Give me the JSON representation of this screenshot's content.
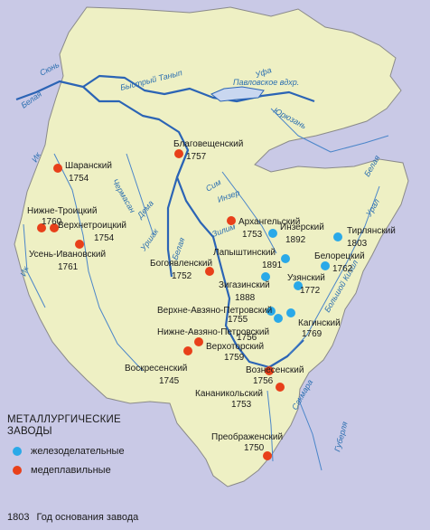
{
  "colors": {
    "background": "#c9c9e6",
    "land": "#eef0c4",
    "border": "#8a8a8a",
    "river": "#2b64b5",
    "river_thin": "#4a85c9",
    "iron_works": "#2aa9e8",
    "copper_works": "#e8401a"
  },
  "legend": {
    "title_line1": "МЕТАЛЛУРГИЧЕСКИЕ",
    "title_line2": "ЗАВОДЫ",
    "iron_label": "железоделательные",
    "copper_label": "медеплавильные",
    "year_sample": "1803",
    "year_label": "Год основания завода"
  },
  "rivers": [
    {
      "name": "Белая"
    },
    {
      "name": "Сюнь"
    },
    {
      "name": "Быстрый Танып"
    },
    {
      "name": "Уфа"
    },
    {
      "name": "Павловское вдхр."
    },
    {
      "name": "Юрюзань"
    },
    {
      "name": "Ик"
    },
    {
      "name": "Чермасан"
    },
    {
      "name": "Дема"
    },
    {
      "name": "Сим"
    },
    {
      "name": "Инзер"
    },
    {
      "name": "Зилим"
    },
    {
      "name": "Уршак"
    },
    {
      "name": "Белая"
    },
    {
      "name": "Ик"
    },
    {
      "name": "Урал"
    },
    {
      "name": "Белая"
    },
    {
      "name": "Сакмара"
    },
    {
      "name": "Большой Кизил"
    },
    {
      "name": "Губерля"
    }
  ],
  "plants": [
    {
      "name": "Благовещенский",
      "year": "1757",
      "type": "copper"
    },
    {
      "name": "Шаранский",
      "year": "1754",
      "type": "copper"
    },
    {
      "name": "Нижне-Троицкий",
      "year": "1760",
      "type": "copper"
    },
    {
      "name": "Верхнетроицкий",
      "year": "1754",
      "type": "copper"
    },
    {
      "name": "Усень-Ивановский",
      "year": "1761",
      "type": "copper"
    },
    {
      "name": "Архангельский",
      "year": "1753",
      "type": "copper"
    },
    {
      "name": "Инзерский",
      "year": "1892",
      "type": "iron"
    },
    {
      "name": "Тирлянский",
      "year": "1803",
      "type": "iron"
    },
    {
      "name": "Лапыштинский",
      "year": "1891",
      "type": "iron"
    },
    {
      "name": "Белорецкий",
      "year": "1762",
      "type": "iron"
    },
    {
      "name": "Богоявленский",
      "year": "1752",
      "type": "copper"
    },
    {
      "name": "Зигазинский",
      "year": "1888",
      "type": "iron"
    },
    {
      "name": "Узянский",
      "year": "1772",
      "type": "iron"
    },
    {
      "name": "Верхне-Авзяно-Петровский",
      "year": "1755",
      "type": "iron"
    },
    {
      "name": "Нижне-Авзяно-Петровский",
      "year": "1756",
      "type": "iron"
    },
    {
      "name": "Кагинский",
      "year": "1769",
      "type": "iron"
    },
    {
      "name": "Верхоторский",
      "year": "1759",
      "type": "copper"
    },
    {
      "name": "Воскресенский",
      "year": "1745",
      "type": "copper"
    },
    {
      "name": "Вознесенский",
      "year": "1756",
      "type": "copper"
    },
    {
      "name": "Кананикольский",
      "year": "1753",
      "type": "copper"
    },
    {
      "name": "Преображенский",
      "year": "1750",
      "type": "copper"
    }
  ]
}
